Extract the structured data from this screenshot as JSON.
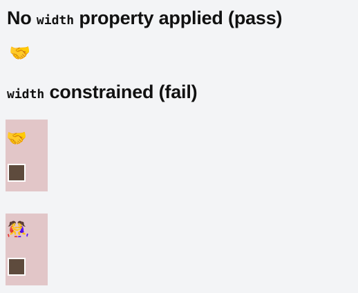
{
  "sections": [
    {
      "title_prefix": "No ",
      "title_code": "width",
      "title_suffix": " property applied (pass)",
      "emoji": "🤝"
    },
    {
      "title_code": "width",
      "title_suffix": " constrained (fail)",
      "examples": [
        {
          "emoji": "🤝"
        },
        {
          "emoji": "🤼‍♀️"
        }
      ]
    }
  ],
  "colors": {
    "background": "#f3f4f6",
    "constrained_box": "#e2c6c8",
    "square_fill": "#5e4b3d",
    "square_border": "#ffffff"
  },
  "icons": {
    "pass_example": "handshake-icon",
    "fail_example_1": "handshake-icon",
    "fail_example_2": "wrestling-women-icon",
    "fail_control_1": "square-icon",
    "fail_control_2": "square-icon"
  }
}
